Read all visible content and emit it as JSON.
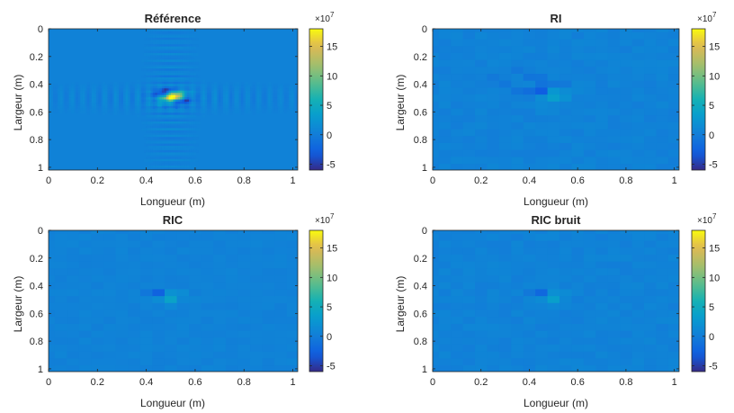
{
  "chart_data": [
    {
      "type": "heatmap",
      "title": "Référence",
      "xlabel": "Longueur (m)",
      "ylabel": "Largeur (m)",
      "xlim": [
        0,
        1.02
      ],
      "ylim": [
        0,
        1.02
      ],
      "x_ticks": [
        "0",
        "0.2",
        "0.4",
        "0.6",
        "0.8",
        "1"
      ],
      "y_ticks": [
        "0",
        "0.2",
        "0.4",
        "0.6",
        "0.8",
        "1"
      ],
      "y_reversed": true,
      "background_value": 0.5,
      "colorbar": {
        "colormap": "parula",
        "min": -6,
        "max": 18,
        "ticks": [
          "-5",
          "0",
          "5",
          "10",
          "15"
        ],
        "multiplier": "×10^7"
      },
      "features": [
        {
          "x": 0.51,
          "y": 0.49,
          "sx": 0.028,
          "sy": 0.018,
          "value": 17.5,
          "angle_deg": -28
        },
        {
          "x": 0.47,
          "y": 0.455,
          "sx": 0.03,
          "sy": 0.014,
          "value": -6.0,
          "angle_deg": -28
        },
        {
          "x": 0.55,
          "y": 0.525,
          "sx": 0.03,
          "sy": 0.014,
          "value": -5.0,
          "angle_deg": -28
        },
        {
          "x": 0.505,
          "y": 0.5,
          "sx": 0.05,
          "sy": 0.03,
          "value": 3.0,
          "angle_deg": -28
        }
      ],
      "ripples": {
        "x0": 0.5,
        "y0": 0.5,
        "half_width": 0.06,
        "period": 0.045,
        "amplitude": 1.6
      }
    },
    {
      "type": "heatmap",
      "title": "RI",
      "xlabel": "Longueur (m)",
      "ylabel": "Largeur (m)",
      "xlim": [
        0,
        1.02
      ],
      "ylim": [
        0,
        1.02
      ],
      "x_ticks": [
        "0",
        "0.2",
        "0.4",
        "0.6",
        "0.8",
        "1"
      ],
      "y_ticks": [
        "0",
        "0.2",
        "0.4",
        "0.6",
        "0.8",
        "1"
      ],
      "y_reversed": true,
      "background_value": 0.5,
      "colorbar": {
        "colormap": "parula",
        "min": -6,
        "max": 18,
        "ticks": [
          "-5",
          "0",
          "5",
          "10",
          "15"
        ],
        "multiplier": "×10^7"
      },
      "grid": 20,
      "cells": [
        {
          "x": 0.45,
          "y": 0.45,
          "value": -3.0
        },
        {
          "x": 0.4,
          "y": 0.45,
          "value": -1.5
        },
        {
          "x": 0.45,
          "y": 0.4,
          "value": -1.0
        },
        {
          "x": 0.5,
          "y": 0.45,
          "value": 2.5
        },
        {
          "x": 0.5,
          "y": 0.5,
          "value": 3.5
        },
        {
          "x": 0.45,
          "y": 0.5,
          "value": 1.5
        },
        {
          "x": 0.55,
          "y": 0.5,
          "value": 2.0
        },
        {
          "x": 0.55,
          "y": 0.45,
          "value": 1.5
        },
        {
          "x": 0.35,
          "y": 0.45,
          "value": -0.8
        },
        {
          "x": 0.3,
          "y": 0.4,
          "value": -0.6
        },
        {
          "x": 0.4,
          "y": 0.35,
          "value": -0.8
        },
        {
          "x": 0.45,
          "y": 0.35,
          "value": -0.7
        },
        {
          "x": 0.5,
          "y": 0.4,
          "value": -0.5
        },
        {
          "x": 0.6,
          "y": 0.45,
          "value": 1.0
        },
        {
          "x": 0.45,
          "y": 0.55,
          "value": 1.2
        },
        {
          "x": 0.45,
          "y": 0.6,
          "value": 1.0
        },
        {
          "x": 0.5,
          "y": 0.6,
          "value": 0.9
        },
        {
          "x": 0.35,
          "y": 0.3,
          "value": -0.5
        },
        {
          "x": 0.25,
          "y": 0.35,
          "value": -0.4
        },
        {
          "x": 0.55,
          "y": 0.4,
          "value": -0.4
        }
      ],
      "noise": 0.45,
      "seed": 11
    },
    {
      "type": "heatmap",
      "title": "RIC",
      "xlabel": "Longueur (m)",
      "ylabel": "Largeur (m)",
      "xlim": [
        0,
        1.02
      ],
      "ylim": [
        0,
        1.02
      ],
      "x_ticks": [
        "0",
        "0.2",
        "0.4",
        "0.6",
        "0.8",
        "1"
      ],
      "y_ticks": [
        "0",
        "0.2",
        "0.4",
        "0.6",
        "0.8",
        "1"
      ],
      "y_reversed": true,
      "background_value": 0.5,
      "colorbar": {
        "colormap": "parula",
        "min": -6,
        "max": 18,
        "ticks": [
          "-5",
          "0",
          "5",
          "10",
          "15"
        ],
        "multiplier": "×10^7"
      },
      "grid": 20,
      "cells": [
        {
          "x": 0.45,
          "y": 0.45,
          "value": -2.5
        },
        {
          "x": 0.5,
          "y": 0.5,
          "value": 4.0
        },
        {
          "x": 0.5,
          "y": 0.45,
          "value": 2.0
        },
        {
          "x": 0.45,
          "y": 0.5,
          "value": 1.5
        },
        {
          "x": 0.55,
          "y": 0.45,
          "value": 1.5
        },
        {
          "x": 0.4,
          "y": 0.45,
          "value": -0.6
        },
        {
          "x": 0.5,
          "y": 0.55,
          "value": 1.2
        },
        {
          "x": 0.55,
          "y": 0.5,
          "value": 1.0
        },
        {
          "x": 0.6,
          "y": 0.5,
          "value": 0.9
        },
        {
          "x": 0.4,
          "y": 0.5,
          "value": 0.8
        }
      ],
      "noise": 0.3,
      "seed": 23
    },
    {
      "type": "heatmap",
      "title": "RIC bruit",
      "xlabel": "Longueur (m)",
      "ylabel": "Largeur (m)",
      "xlim": [
        0,
        1.02
      ],
      "ylim": [
        0,
        1.02
      ],
      "x_ticks": [
        "0",
        "0.2",
        "0.4",
        "0.6",
        "0.8",
        "1"
      ],
      "y_ticks": [
        "0",
        "0.2",
        "0.4",
        "0.6",
        "0.8",
        "1"
      ],
      "y_reversed": true,
      "background_value": 0.5,
      "colorbar": {
        "colormap": "parula",
        "min": -6,
        "max": 18,
        "ticks": [
          "-5",
          "0",
          "5",
          "10",
          "15"
        ],
        "multiplier": "×10^7"
      },
      "grid": 20,
      "cells": [
        {
          "x": 0.45,
          "y": 0.45,
          "value": -2.0
        },
        {
          "x": 0.5,
          "y": 0.5,
          "value": 3.5
        },
        {
          "x": 0.5,
          "y": 0.45,
          "value": 1.8
        },
        {
          "x": 0.45,
          "y": 0.5,
          "value": 1.4
        },
        {
          "x": 0.55,
          "y": 0.45,
          "value": 1.4
        },
        {
          "x": 0.4,
          "y": 0.45,
          "value": -0.5
        },
        {
          "x": 0.5,
          "y": 0.55,
          "value": 1.1
        },
        {
          "x": 0.55,
          "y": 0.5,
          "value": 1.0
        },
        {
          "x": 0.6,
          "y": 0.45,
          "value": 0.8
        },
        {
          "x": 0.45,
          "y": 0.55,
          "value": 0.7
        }
      ],
      "noise": 0.42,
      "seed": 37
    }
  ]
}
